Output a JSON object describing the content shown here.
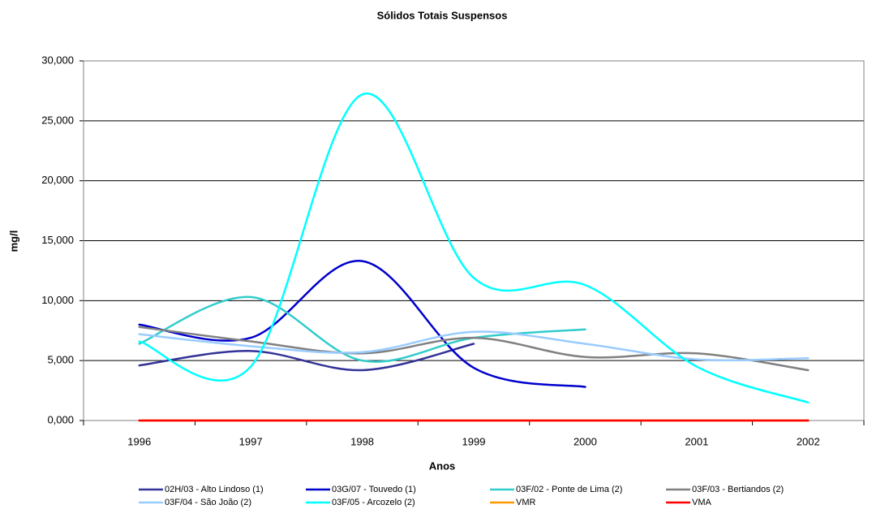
{
  "chart_data": {
    "type": "line",
    "title": "Sólidos Totais Suspensos",
    "x_label": "Anos",
    "y_label": "mg/l",
    "categories": [
      "1996",
      "1997",
      "1998",
      "1999",
      "2000",
      "2001",
      "2002"
    ],
    "ylim": [
      0,
      30
    ],
    "yticks": [
      {
        "value": 0,
        "label": "0,000"
      },
      {
        "value": 5,
        "label": "5,000"
      },
      {
        "value": 10,
        "label": "10,000"
      },
      {
        "value": 15,
        "label": "15,000"
      },
      {
        "value": 20,
        "label": "20,000"
      },
      {
        "value": 25,
        "label": "25,000"
      },
      {
        "value": 30,
        "label": "30,000"
      }
    ],
    "grid": true,
    "smooth": true,
    "legend": "bottom",
    "series": [
      {
        "name": "02H/03 - Alto Lindoso (1)",
        "color": "#333399",
        "values": [
          4.6,
          5.8,
          4.2,
          6.4,
          null,
          null,
          null
        ]
      },
      {
        "name": "03G/07 - Touvedo (1)",
        "color": "#0000cc",
        "values": [
          8.0,
          6.9,
          13.3,
          4.4,
          2.8,
          null,
          null
        ]
      },
      {
        "name": "03F/02 - Ponte de Lima (2)",
        "color": "#33cccc",
        "values": [
          6.4,
          10.3,
          5.0,
          6.9,
          7.6,
          null,
          null
        ]
      },
      {
        "name": "03F/03 - Bertiandos (2)",
        "color": "#808080",
        "values": [
          7.8,
          6.6,
          5.6,
          6.9,
          5.3,
          5.6,
          4.2
        ]
      },
      {
        "name": "03F/04 - São João (2)",
        "color": "#99ccff",
        "values": [
          7.2,
          6.2,
          5.7,
          7.4,
          6.4,
          5.1,
          5.2
        ]
      },
      {
        "name": "03F/05 - Arcozelo (2)",
        "color": "#00ffff",
        "values": [
          6.6,
          4.5,
          27.2,
          11.9,
          11.3,
          4.5,
          1.5
        ]
      },
      {
        "name": "VMR",
        "color": "#ff9900",
        "values": [
          0,
          0,
          0,
          0,
          0,
          0,
          0
        ]
      },
      {
        "name": "VMA",
        "color": "#ff0000",
        "values": [
          0,
          0,
          0,
          0,
          0,
          0,
          0
        ]
      }
    ]
  }
}
